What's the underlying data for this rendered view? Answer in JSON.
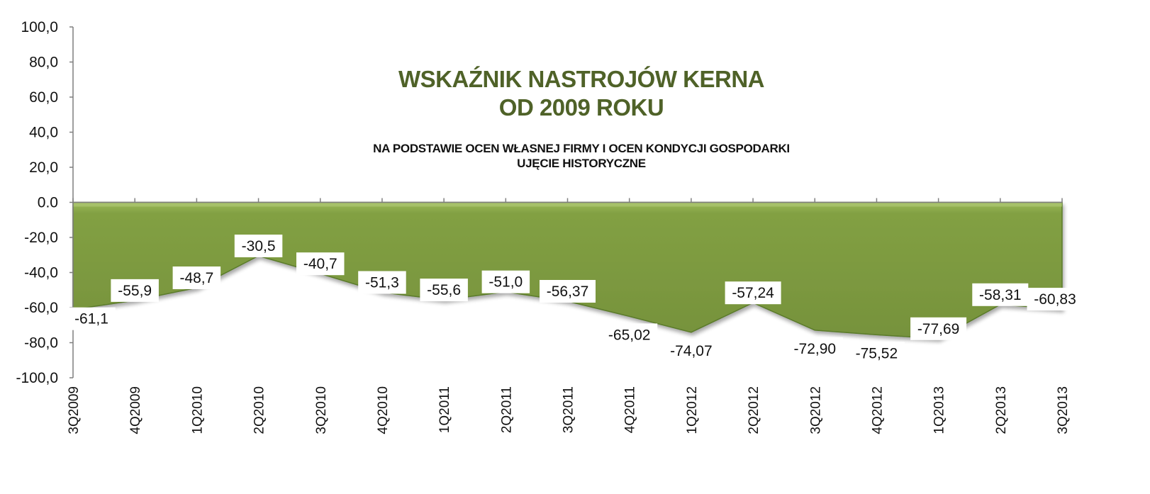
{
  "colors": {
    "area_fill": "#76923c",
    "area_fill_light": "#9bbb59",
    "line": "#5a7a2a",
    "title": "#4f6228",
    "axis": "#7f7f7f"
  },
  "chart_data": {
    "type": "area",
    "title_lines": [
      "WSKAŹNIK NASTROJÓW KERNA",
      "OD 2009 ROKU"
    ],
    "subtitle_lines": [
      "NA PODSTAWIE OCEN WŁASNEJ FIRMY I OCEN KONDYCJI GOSPODARKI",
      "UJĘCIE HISTORYCZNE"
    ],
    "categories": [
      "3Q2009",
      "4Q2009",
      "1Q2010",
      "2Q2010",
      "3Q2010",
      "4Q2010",
      "1Q2011",
      "2Q2011",
      "3Q2011",
      "4Q2011",
      "1Q2012",
      "2Q2012",
      "3Q2012",
      "4Q2012",
      "1Q2013",
      "2Q2013",
      "3Q2013"
    ],
    "values": [
      -61.1,
      -55.9,
      -48.7,
      -30.5,
      -40.7,
      -51.3,
      -55.6,
      -51.0,
      -56.37,
      -65.02,
      -74.07,
      -57.24,
      -72.9,
      -75.52,
      -77.69,
      -58.31,
      -60.83
    ],
    "data_labels": [
      "-61,1",
      "-55,9",
      "-48,7",
      "-30,5",
      "-40,7",
      "-51,3",
      "-55,6",
      "-51,0",
      "-56,37",
      "-65,02",
      "-74,07",
      "-57,24",
      "-72,90",
      "-75,52",
      "-77,69",
      "-58,31",
      "-60,83"
    ],
    "y_ticks": [
      "100,0",
      "80,0",
      "60,0",
      "40,0",
      "20,0",
      "0.0",
      "-20,0",
      "-40,0",
      "-60,0",
      "-80,0",
      "-100,0"
    ],
    "ylim": [
      -100,
      100
    ],
    "grid": false,
    "legend": "none"
  }
}
